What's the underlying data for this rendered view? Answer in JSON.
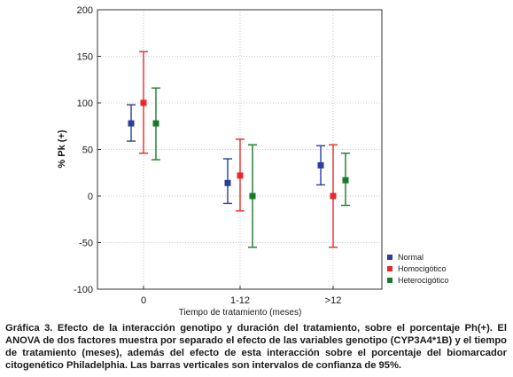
{
  "chart_data": {
    "type": "scatter",
    "title": "",
    "xlabel": "Tiempo de tratamiento (meses)",
    "ylabel": "% Pk (+)",
    "categories": [
      "0",
      "1-12",
      ">12"
    ],
    "ylim": [
      -100,
      200
    ],
    "yticks": [
      -100,
      -50,
      0,
      50,
      100,
      150,
      200
    ],
    "grid": true,
    "legend_position": "right",
    "series": [
      {
        "name": "Normal",
        "color": "#2b3f9e",
        "values": [
          78,
          14,
          33
        ],
        "lower": [
          59,
          -8,
          12
        ],
        "upper": [
          98,
          40,
          54
        ]
      },
      {
        "name": "Homocigótico",
        "color": "#e8282a",
        "values": [
          100,
          22,
          0
        ],
        "lower": [
          46,
          -16,
          -55
        ],
        "upper": [
          155,
          61,
          55
        ]
      },
      {
        "name": "Heterocigótico",
        "color": "#1a7a2c",
        "values": [
          78,
          0,
          17
        ],
        "lower": [
          39,
          -55,
          -10
        ],
        "upper": [
          116,
          55,
          46
        ]
      }
    ]
  },
  "caption": "Gráfica 3. Efecto de la interacción genotipo y duración del tratamiento, sobre el porcentaje Ph(+). El ANOVA de dos factores muestra por separado el efecto de las variables genotipo (CYP3A4*1B) y el tiempo de tratamiento (meses), además del efecto de esta interacción sobre el porcentaje del biomarcador citogenético Philadelphia. Las barras verticales son intervalos de confianza de 95%."
}
